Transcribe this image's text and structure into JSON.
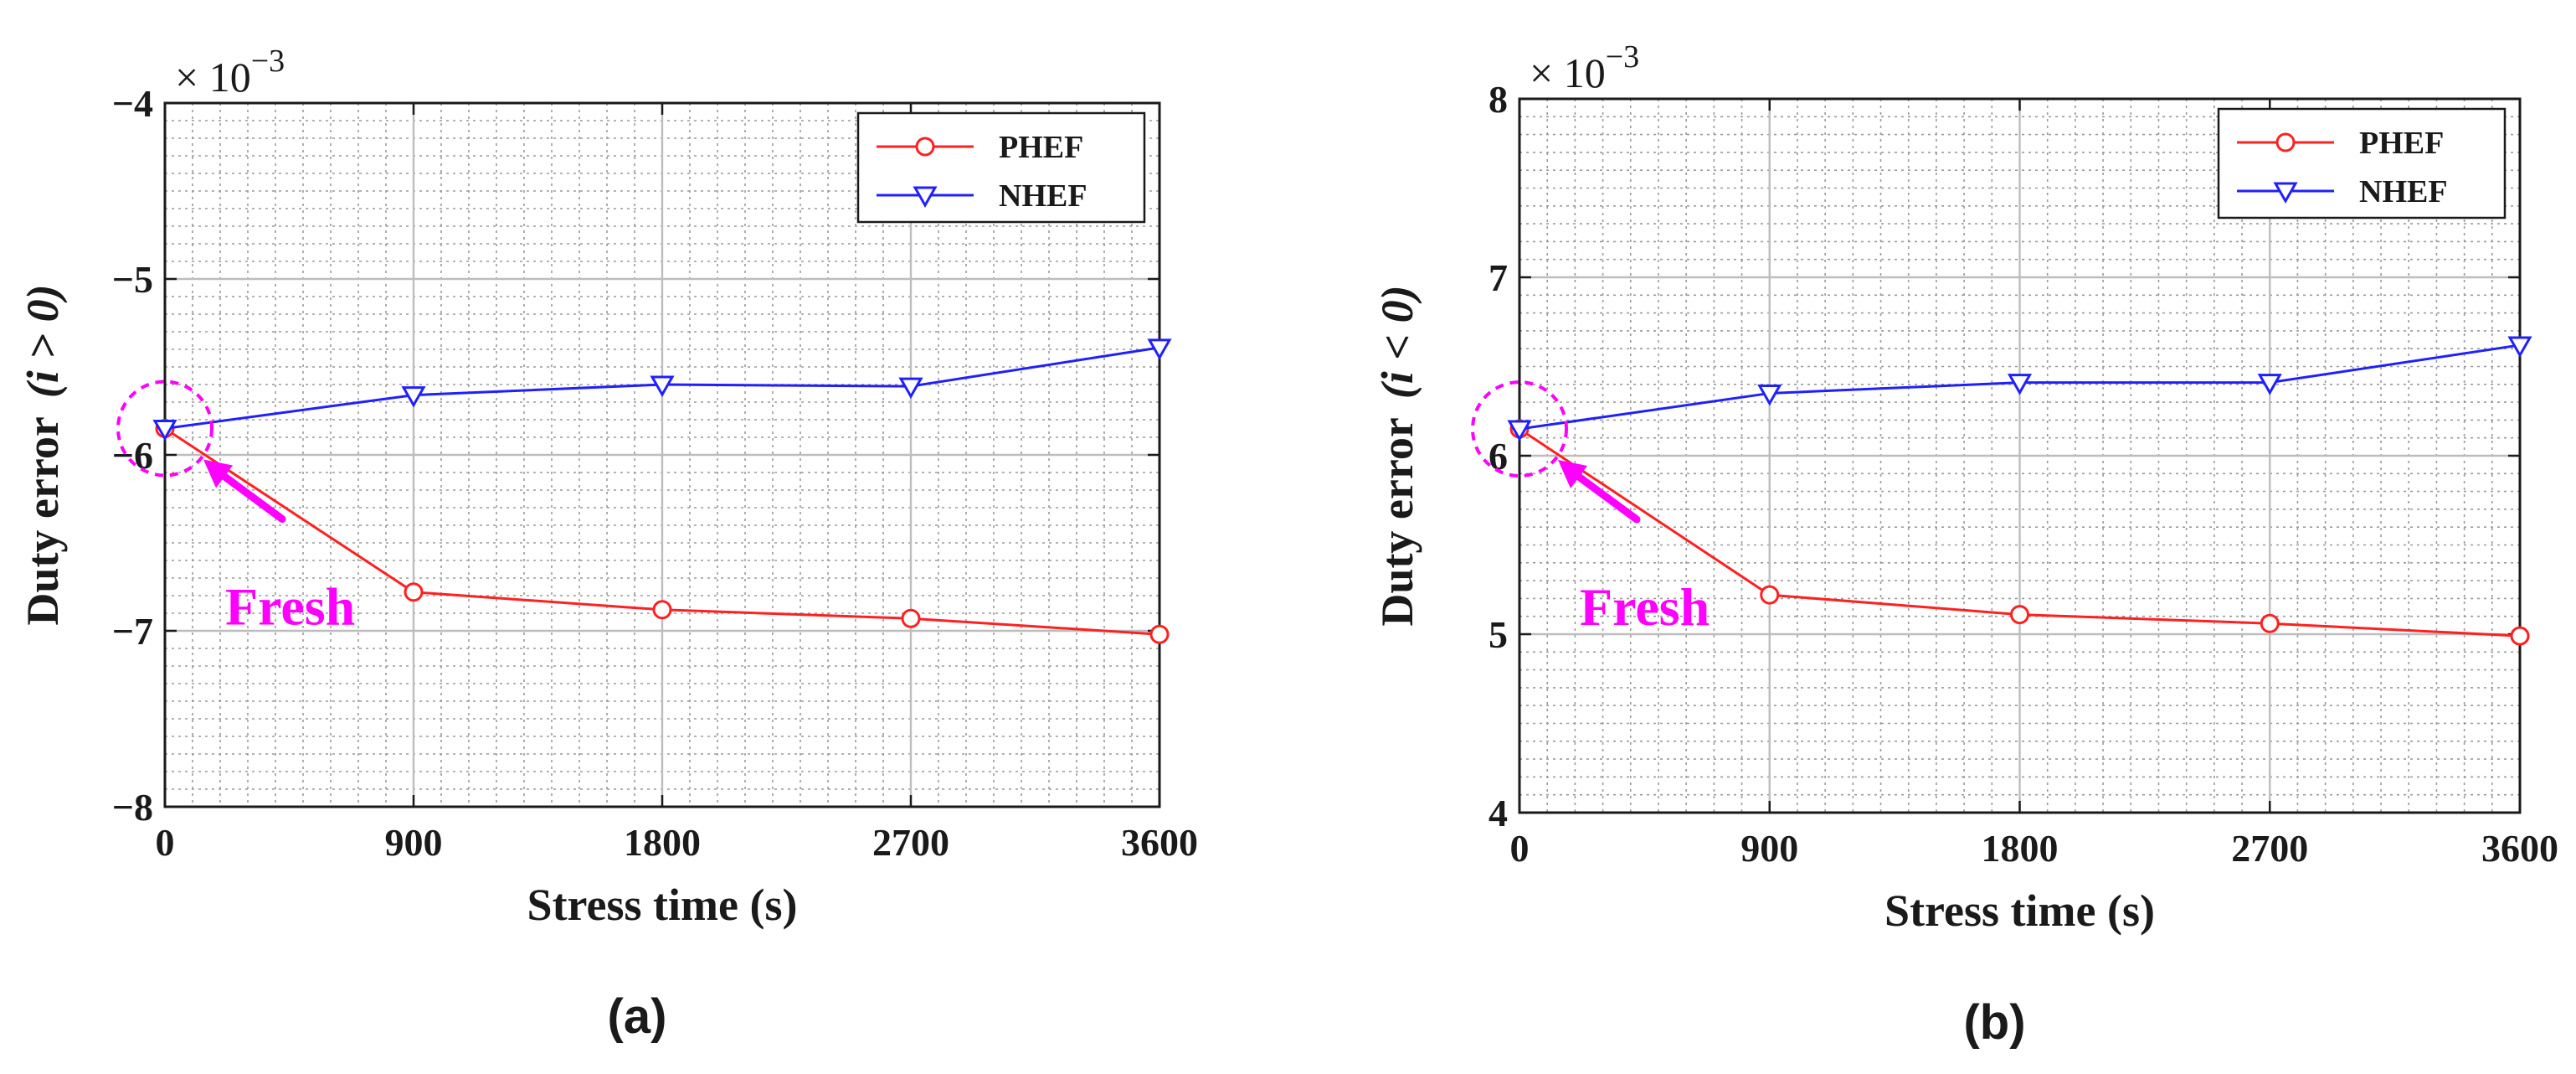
{
  "chart_data": [
    {
      "type": "line",
      "panel_label": "(a)",
      "multiplier_base": "× 10",
      "multiplier_exp": "−3",
      "xlabel": "Stress time (s)",
      "ylabel": "Duty error",
      "ylabel_cond": "(i > 0)",
      "x": [
        0,
        900,
        1800,
        2700,
        3600
      ],
      "xlim": [
        0,
        3600
      ],
      "ylim": [
        -8,
        -4
      ],
      "xticks": [
        0,
        900,
        1800,
        2700,
        3600
      ],
      "xtick_labels": [
        "0",
        "900",
        "1800",
        "2700",
        "3600"
      ],
      "yticks": [
        -8,
        -7,
        -6,
        -5,
        -4
      ],
      "ytick_labels": [
        "−8",
        "−7",
        "−6",
        "−5",
        "−4"
      ],
      "grid": true,
      "legend_position": "top-right",
      "series": [
        {
          "name": "PHEF",
          "marker": "circle",
          "color": "#ff2020",
          "values": [
            -5.85,
            -6.78,
            -6.88,
            -6.93,
            -7.02
          ]
        },
        {
          "name": "NHEF",
          "marker": "triangle-down",
          "color": "#2020ff",
          "values": [
            -5.85,
            -5.66,
            -5.6,
            -5.61,
            -5.39
          ]
        }
      ],
      "annotation": {
        "text": "Fresh",
        "point": [
          0,
          -5.85
        ],
        "color": "#ff00ff"
      }
    },
    {
      "type": "line",
      "panel_label": "(b)",
      "multiplier_base": "× 10",
      "multiplier_exp": "−3",
      "xlabel": "Stress time (s)",
      "ylabel": "Duty error",
      "ylabel_cond": "(i < 0)",
      "x": [
        0,
        900,
        1800,
        2700,
        3600
      ],
      "xlim": [
        0,
        3600
      ],
      "ylim": [
        4,
        8
      ],
      "xticks": [
        0,
        900,
        1800,
        2700,
        3600
      ],
      "xtick_labels": [
        "0",
        "900",
        "1800",
        "2700",
        "3600"
      ],
      "yticks": [
        4,
        5,
        6,
        7,
        8
      ],
      "ytick_labels": [
        "4",
        "5",
        "6",
        "7",
        "8"
      ],
      "grid": true,
      "legend_position": "top-right",
      "series": [
        {
          "name": "PHEF",
          "marker": "circle",
          "color": "#ff2020",
          "values": [
            6.15,
            5.22,
            5.11,
            5.06,
            4.99
          ]
        },
        {
          "name": "NHEF",
          "marker": "triangle-down",
          "color": "#2020ff",
          "values": [
            6.15,
            6.35,
            6.41,
            6.41,
            6.62
          ]
        }
      ],
      "annotation": {
        "text": "Fresh",
        "point": [
          0,
          6.15
        ],
        "color": "#ff00ff"
      }
    }
  ]
}
